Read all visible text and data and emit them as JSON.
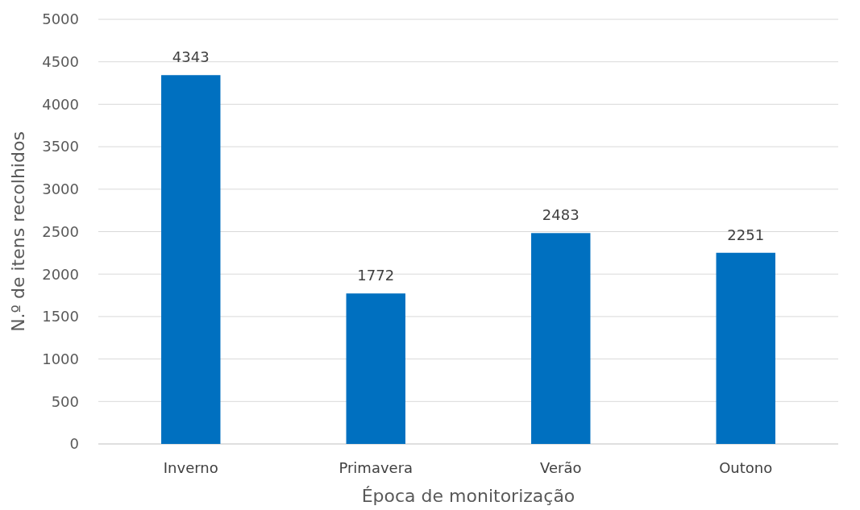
{
  "chart_data": {
    "type": "bar",
    "xlabel": "Época de monitorização",
    "ylabel": "N.º de itens recolhidos",
    "categories": [
      "Inverno",
      "Primavera",
      "Verão",
      "Outono"
    ],
    "values": [
      4343,
      1772,
      2483,
      2251
    ],
    "color": "#0070c0",
    "ylim": [
      0,
      5000
    ],
    "yticks": [
      0,
      500,
      1000,
      1500,
      2000,
      2500,
      3000,
      3500,
      4000,
      4500,
      5000
    ],
    "grid": "y",
    "data_labels": true
  }
}
